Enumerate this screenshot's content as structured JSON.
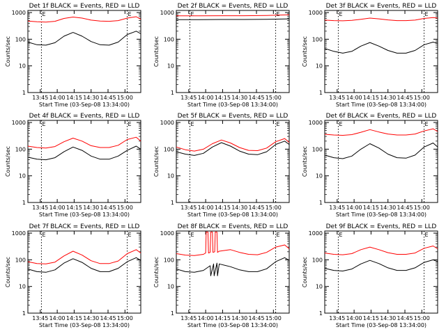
{
  "figure": {
    "background": "#ffffff",
    "events_color": "#000000",
    "lld_color": "#ff0000"
  },
  "chart_data": [
    {
      "type": "line",
      "title": "Det 1f BLACK = Events, RED = LLD",
      "ylabel": "Counts/sec",
      "xlabel": "Start Time (03-Sep-08 13:34:00)",
      "x_tick_labels": [
        "13:45",
        "14:00",
        "14:15",
        "14:30",
        "14:45",
        "15:00"
      ],
      "x_ticks_min": [
        11,
        26,
        41,
        56,
        71,
        86
      ],
      "y_tick_labels": [
        "1",
        "10",
        "100",
        "1000"
      ],
      "ylim": [
        1,
        1200
      ],
      "y_scale": "log",
      "xlim_min": [
        0,
        100
      ],
      "markers_min": [
        12,
        88
      ],
      "marker_label": "E",
      "series": [
        {
          "name": "BLACK = Events",
          "color": "#000000",
          "x": [
            0,
            8,
            16,
            24,
            32,
            40,
            48,
            56,
            64,
            72,
            80,
            88,
            96,
            100
          ],
          "y": [
            78,
            62,
            60,
            74,
            130,
            180,
            130,
            82,
            62,
            60,
            78,
            150,
            200,
            160
          ]
        },
        {
          "name": "RED = LLD",
          "color": "#ff0000",
          "x": [
            0,
            8,
            16,
            24,
            32,
            40,
            48,
            56,
            64,
            72,
            80,
            88,
            96,
            100
          ],
          "y": [
            480,
            450,
            440,
            470,
            600,
            680,
            620,
            520,
            480,
            470,
            500,
            620,
            700,
            560
          ]
        }
      ]
    },
    {
      "type": "line",
      "title": "Det 2f BLACK = Events, RED = LLD",
      "ylabel": "Counts/sec",
      "xlabel": "Start Time (03-Sep-08 13:34:00)",
      "x_tick_labels": [
        "13:45",
        "14:00",
        "14:15",
        "14:30",
        "14:45",
        "15:00"
      ],
      "x_ticks_min": [
        11,
        26,
        41,
        56,
        71,
        86
      ],
      "y_tick_labels": [
        "1",
        "10",
        "100",
        "1000"
      ],
      "ylim": [
        1,
        1200
      ],
      "y_scale": "log",
      "xlim_min": [
        0,
        100
      ],
      "markers_min": [
        12,
        88
      ],
      "marker_label": "E",
      "series": [
        {
          "name": "BLACK = Events",
          "color": "#000000",
          "x": [
            0,
            20,
            40,
            60,
            80,
            100
          ],
          "y": [
            540,
            540,
            550,
            550,
            560,
            580
          ]
        },
        {
          "name": "RED = LLD",
          "color": "#ff0000",
          "x": [
            0,
            20,
            40,
            60,
            80,
            100
          ],
          "y": [
            750,
            750,
            760,
            760,
            780,
            820
          ]
        }
      ]
    },
    {
      "type": "line",
      "title": "Det 3f BLACK = Events, RED = LLD",
      "ylabel": "Counts/sec",
      "xlabel": "Start Time (03-Sep-08 13:34:00)",
      "x_tick_labels": [
        "13:45",
        "14:00",
        "14:15",
        "14:30",
        "14:45",
        "15:00"
      ],
      "x_ticks_min": [
        11,
        26,
        41,
        56,
        71,
        86
      ],
      "y_tick_labels": [
        "1",
        "10",
        "100",
        "1000"
      ],
      "ylim": [
        1,
        1200
      ],
      "y_scale": "log",
      "xlim_min": [
        0,
        100
      ],
      "markers_min": [
        12,
        88
      ],
      "marker_label": "E",
      "series": [
        {
          "name": "BLACK = Events",
          "color": "#000000",
          "x": [
            0,
            8,
            16,
            24,
            32,
            40,
            48,
            56,
            64,
            72,
            80,
            88,
            96,
            100
          ],
          "y": [
            45,
            35,
            30,
            35,
            55,
            75,
            55,
            38,
            30,
            30,
            38,
            62,
            78,
            70
          ]
        },
        {
          "name": "RED = LLD",
          "color": "#ff0000",
          "x": [
            0,
            8,
            16,
            24,
            32,
            40,
            48,
            56,
            64,
            72,
            80,
            88,
            96,
            100
          ],
          "y": [
            520,
            500,
            490,
            510,
            560,
            620,
            580,
            530,
            500,
            500,
            520,
            600,
            650,
            620
          ]
        }
      ]
    },
    {
      "type": "line",
      "title": "Det 4f BLACK = Events, RED = LLD",
      "ylabel": "Counts/sec",
      "xlabel": "Start Time (03-Sep-08 13:34:00)",
      "x_tick_labels": [
        "13:45",
        "14:00",
        "14:15",
        "14:30",
        "14:45",
        "15:00"
      ],
      "x_ticks_min": [
        11,
        26,
        41,
        56,
        71,
        86
      ],
      "y_tick_labels": [
        "1",
        "10",
        "100",
        "1000"
      ],
      "ylim": [
        1,
        1200
      ],
      "y_scale": "log",
      "xlim_min": [
        0,
        100
      ],
      "markers_min": [
        12,
        88
      ],
      "marker_label": "E",
      "series": [
        {
          "name": "BLACK = Events",
          "color": "#000000",
          "x": [
            0,
            8,
            16,
            24,
            32,
            40,
            48,
            56,
            64,
            72,
            80,
            88,
            96,
            100
          ],
          "y": [
            50,
            42,
            40,
            48,
            80,
            120,
            90,
            55,
            42,
            42,
            55,
            90,
            130,
            100
          ]
        },
        {
          "name": "RED = LLD",
          "color": "#ff0000",
          "x": [
            0,
            8,
            16,
            24,
            32,
            40,
            48,
            56,
            64,
            72,
            80,
            88,
            96,
            100
          ],
          "y": [
            130,
            115,
            110,
            125,
            190,
            260,
            200,
            135,
            115,
            115,
            140,
            230,
            280,
            200
          ]
        }
      ]
    },
    {
      "type": "line",
      "title": "Det 5f BLACK = Events, RED = LLD",
      "ylabel": "Counts/sec",
      "xlabel": "Start Time (03-Sep-08 13:34:00)",
      "x_tick_labels": [
        "13:45",
        "14:00",
        "14:15",
        "14:30",
        "14:45",
        "15:00"
      ],
      "x_ticks_min": [
        11,
        26,
        41,
        56,
        71,
        86
      ],
      "y_tick_labels": [
        "1",
        "10",
        "100",
        "1000"
      ],
      "ylim": [
        1,
        1200
      ],
      "y_scale": "log",
      "xlim_min": [
        0,
        100
      ],
      "markers_min": [
        12,
        88
      ],
      "marker_label": "E",
      "series": [
        {
          "name": "BLACK = Events",
          "color": "#000000",
          "x": [
            0,
            8,
            16,
            24,
            32,
            40,
            48,
            56,
            64,
            72,
            80,
            88,
            96,
            100
          ],
          "y": [
            80,
            65,
            58,
            70,
            120,
            175,
            130,
            85,
            65,
            62,
            80,
            150,
            200,
            150
          ]
        },
        {
          "name": "RED = LLD",
          "color": "#ff0000",
          "x": [
            0,
            8,
            16,
            24,
            32,
            40,
            48,
            56,
            64,
            72,
            80,
            88,
            96,
            100
          ],
          "y": [
            120,
            95,
            85,
            100,
            160,
            220,
            170,
            115,
            90,
            88,
            110,
            190,
            250,
            180
          ]
        }
      ]
    },
    {
      "type": "line",
      "title": "Det 6f BLACK = Events, RED = LLD",
      "ylabel": "Counts/sec",
      "xlabel": "Start Time (03-Sep-08 13:34:00)",
      "x_tick_labels": [
        "13:45",
        "14:00",
        "14:15",
        "14:30",
        "14:45",
        "15:00"
      ],
      "x_ticks_min": [
        11,
        26,
        41,
        56,
        71,
        86
      ],
      "y_tick_labels": [
        "1",
        "10",
        "100",
        "1000"
      ],
      "ylim": [
        1,
        1200
      ],
      "y_scale": "log",
      "xlim_min": [
        0,
        100
      ],
      "markers_min": [
        12,
        88
      ],
      "marker_label": "E",
      "series": [
        {
          "name": "BLACK = Events",
          "color": "#000000",
          "x": [
            0,
            8,
            16,
            24,
            32,
            40,
            48,
            56,
            64,
            72,
            80,
            88,
            96,
            100
          ],
          "y": [
            60,
            48,
            44,
            55,
            100,
            160,
            110,
            65,
            48,
            46,
            60,
            120,
            170,
            120
          ]
        },
        {
          "name": "RED = LLD",
          "color": "#ff0000",
          "x": [
            0,
            8,
            16,
            24,
            32,
            40,
            48,
            56,
            64,
            72,
            80,
            88,
            96,
            100
          ],
          "y": [
            360,
            340,
            330,
            350,
            430,
            540,
            440,
            370,
            340,
            340,
            370,
            480,
            580,
            460
          ]
        }
      ]
    },
    {
      "type": "line",
      "title": "Det 7f BLACK = Events, RED = LLD",
      "ylabel": "Counts/sec",
      "xlabel": "Start Time (03-Sep-08 13:34:00)",
      "x_tick_labels": [
        "13:45",
        "14:00",
        "14:15",
        "14:30",
        "14:45",
        "15:00"
      ],
      "x_ticks_min": [
        11,
        26,
        41,
        56,
        71,
        86
      ],
      "y_tick_labels": [
        "1",
        "10",
        "100",
        "1000"
      ],
      "ylim": [
        1,
        1200
      ],
      "y_scale": "log",
      "xlim_min": [
        0,
        100
      ],
      "markers_min": [
        12,
        88
      ],
      "marker_label": "E",
      "series": [
        {
          "name": "BLACK = Events",
          "color": "#000000",
          "x": [
            0,
            8,
            16,
            24,
            32,
            40,
            48,
            56,
            64,
            72,
            80,
            88,
            96,
            100
          ],
          "y": [
            45,
            36,
            34,
            42,
            75,
            110,
            80,
            48,
            36,
            36,
            48,
            85,
            120,
            95
          ]
        },
        {
          "name": "RED = LLD",
          "color": "#ff0000",
          "x": [
            0,
            8,
            16,
            24,
            32,
            40,
            48,
            56,
            64,
            72,
            80,
            88,
            96,
            100
          ],
          "y": [
            85,
            72,
            70,
            82,
            140,
            210,
            150,
            92,
            72,
            72,
            90,
            170,
            240,
            180
          ]
        }
      ]
    },
    {
      "type": "line",
      "title": "Det 8f BLACK = Events, RED = LLD",
      "ylabel": "Counts/sec",
      "xlabel": "Start Time (03-Sep-08 13:34:00)",
      "x_tick_labels": [
        "13:45",
        "14:00",
        "14:15",
        "14:30",
        "14:45",
        "15:00"
      ],
      "x_ticks_min": [
        11,
        26,
        41,
        56,
        71,
        86
      ],
      "y_tick_labels": [
        "1",
        "10",
        "100",
        "1000"
      ],
      "ylim": [
        1,
        1200
      ],
      "y_scale": "log",
      "xlim_min": [
        0,
        100
      ],
      "markers_min": [
        12,
        88
      ],
      "marker_label": "E",
      "series": [
        {
          "name": "BLACK = Events",
          "color": "#000000",
          "x": [
            0,
            8,
            16,
            24,
            30,
            30.5,
            33,
            33.5,
            36,
            36.5,
            38,
            48,
            56,
            64,
            72,
            80,
            88,
            96,
            100
          ],
          "y": [
            45,
            36,
            34,
            40,
            60,
            25,
            70,
            25,
            75,
            25,
            70,
            55,
            42,
            36,
            36,
            46,
            85,
            120,
            95
          ]
        },
        {
          "name": "RED = LLD",
          "color": "#ff0000",
          "x": [
            0,
            8,
            16,
            24,
            26,
            26.5,
            28,
            28.5,
            30,
            30.5,
            32,
            32.5,
            34,
            34.5,
            36,
            36.5,
            38,
            48,
            56,
            64,
            72,
            80,
            88,
            96,
            100
          ],
          "y": [
            170,
            150,
            145,
            160,
            180,
            1100,
            1100,
            180,
            190,
            1100,
            1100,
            190,
            200,
            1100,
            1100,
            190,
            210,
            240,
            190,
            160,
            155,
            190,
            300,
            360,
            260
          ]
        }
      ]
    },
    {
      "type": "line",
      "title": "Det 9f BLACK = Events, RED = LLD",
      "ylabel": "Counts/sec",
      "xlabel": "Start Time (03-Sep-08 13:34:00)",
      "x_tick_labels": [
        "13:45",
        "14:00",
        "14:15",
        "14:30",
        "14:45",
        "15:00"
      ],
      "x_ticks_min": [
        11,
        26,
        41,
        56,
        71,
        86
      ],
      "y_tick_labels": [
        "1",
        "10",
        "100",
        "1000"
      ],
      "ylim": [
        1,
        1200
      ],
      "y_scale": "log",
      "xlim_min": [
        0,
        100
      ],
      "markers_min": [
        12,
        88
      ],
      "marker_label": "E",
      "series": [
        {
          "name": "BLACK = Events",
          "color": "#000000",
          "x": [
            0,
            8,
            16,
            24,
            32,
            40,
            48,
            56,
            64,
            72,
            80,
            88,
            96,
            100
          ],
          "y": [
            48,
            40,
            38,
            45,
            70,
            95,
            72,
            50,
            40,
            40,
            50,
            80,
            100,
            85
          ]
        },
        {
          "name": "RED = LLD",
          "color": "#ff0000",
          "x": [
            0,
            8,
            16,
            24,
            32,
            40,
            48,
            56,
            64,
            72,
            80,
            88,
            96,
            100
          ],
          "y": [
            180,
            160,
            155,
            170,
            240,
            300,
            240,
            185,
            160,
            160,
            180,
            270,
            330,
            260
          ]
        }
      ]
    }
  ]
}
